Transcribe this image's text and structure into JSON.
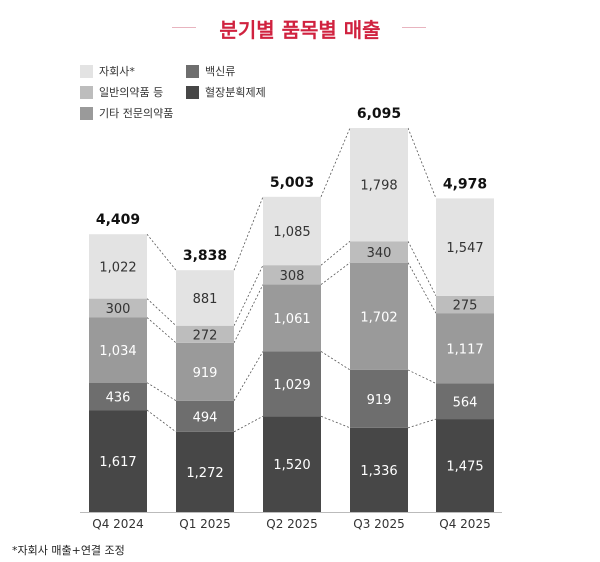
{
  "title": "분기별 품목별 매출",
  "footnote": "*자회사 매출+연결 조정",
  "chart_data": {
    "type": "bar",
    "stacked": true,
    "categories": [
      "Q4 2024",
      "Q1 2025",
      "Q2 2025",
      "Q3 2025",
      "Q4 2025"
    ],
    "totals": [
      4409,
      3838,
      5003,
      6095,
      4978
    ],
    "total_labels": [
      "4,409",
      "3,838",
      "5,003",
      "6,095",
      "4,978"
    ],
    "series": [
      {
        "name": "혈장분획제제",
        "color": "#474747",
        "values": [
          1617,
          1272,
          1520,
          1336,
          1475
        ],
        "labels": [
          "1,617",
          "1,272",
          "1,520",
          "1,336",
          "1,475"
        ]
      },
      {
        "name": "백신류",
        "color": "#6e6e6e",
        "values": [
          436,
          494,
          1029,
          919,
          564
        ],
        "labels": [
          "436",
          "494",
          "1,029",
          "919",
          "564"
        ]
      },
      {
        "name": "기타 전문의약품",
        "color": "#9a9a9a",
        "values": [
          1034,
          919,
          1061,
          1702,
          1117
        ],
        "labels": [
          "1,034",
          "919",
          "1,061",
          "1,702",
          "1,117"
        ]
      },
      {
        "name": "일반의약품 등",
        "color": "#bdbdbd",
        "values": [
          300,
          272,
          308,
          340,
          275
        ],
        "labels": [
          "300",
          "272",
          "308",
          "340",
          "275"
        ]
      },
      {
        "name": "자회사*",
        "color": "#e3e3e3",
        "values": [
          1022,
          881,
          1085,
          1798,
          1547
        ],
        "labels": [
          "1,022",
          "881",
          "1,085",
          "1,798",
          "1,547"
        ]
      }
    ],
    "legend_order": [
      "자회사*",
      "일반의약품 등",
      "기타 전문의약품",
      "백신류",
      "혈장분획제제"
    ],
    "grid": false,
    "legend_position": "top-left",
    "connector_lines": "dashed"
  }
}
